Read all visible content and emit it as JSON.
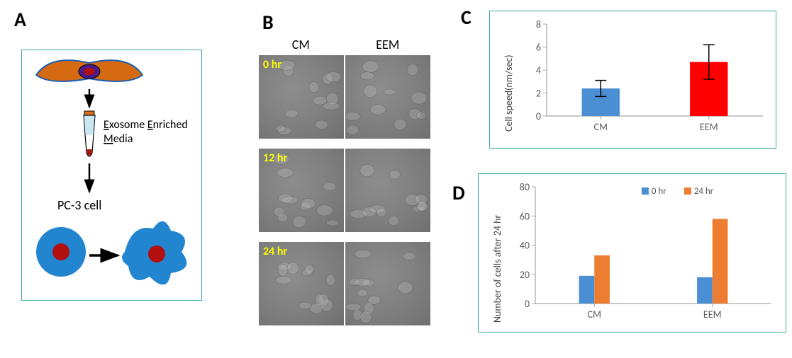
{
  "panel_labels": {
    "A": "A",
    "B": "B",
    "C": "C",
    "D": "D"
  },
  "panelA": {
    "text_exosome": "Exosome Enriched",
    "text_media_underline": "M",
    "text_media": "edia",
    "text_pc3": "PC-3 cell",
    "fill_orange": "#d56a13",
    "fill_blue": "#2185d0",
    "fill_red": "#b20f0f",
    "tube_cap": "#d86f1c",
    "tube_liquid_top": "#c9e7f0",
    "tube_liquid_bottom": "#b20f0f",
    "cell_outline": "#1a5fb4"
  },
  "panelB": {
    "header_cm": "CM",
    "header_eem": "EEM",
    "timepoints": [
      "0 hr",
      "12 hr",
      "24 hr"
    ],
    "cell_bg": "#7d7d7d"
  },
  "panelC": {
    "type": "bar",
    "categories": [
      "CM",
      "EEM"
    ],
    "values": [
      2.4,
      4.7
    ],
    "err_low": [
      0.7,
      1.5
    ],
    "err_high": [
      0.7,
      1.5
    ],
    "bar_colors": [
      "#4a8fd4",
      "#ff0000"
    ],
    "ylabel": "Cell speed(nm/sec)",
    "ylim": [
      0,
      8
    ],
    "ytick_step": 2,
    "label_fontsize": 14,
    "tick_fontsize": 14,
    "bar_width": 0.35,
    "axis_color": "#a6a6a6",
    "err_color": "#000000",
    "grid_on": false
  },
  "panelD": {
    "type": "grouped_bar",
    "categories": [
      "CM",
      "EEM"
    ],
    "series": [
      {
        "name": "0 hr",
        "values": [
          19,
          18
        ],
        "color": "#4a8fd4"
      },
      {
        "name": "24 hr",
        "values": [
          33,
          58
        ],
        "color": "#ed7d31"
      }
    ],
    "ylabel": "Number of cells after 24 hr",
    "ylim": [
      0,
      80
    ],
    "ytick_step": 20,
    "label_fontsize": 14,
    "tick_fontsize": 14,
    "bar_width": 0.26,
    "axis_color": "#a6a6a6",
    "legend_marker_size": 10,
    "grid_on": false
  }
}
